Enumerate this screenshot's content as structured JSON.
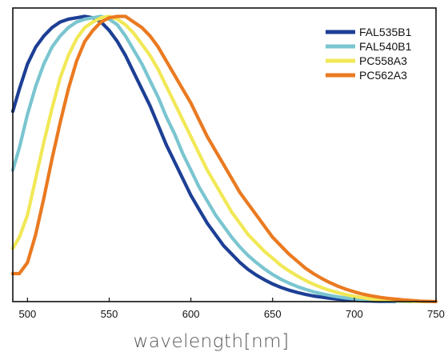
{
  "chart_data": {
    "type": "line",
    "title": "",
    "xlabel": "wavelength[nm]",
    "ylabel": "",
    "xlim": [
      491,
      750
    ],
    "ylim": [
      0,
      1.05
    ],
    "x_ticks": [
      500,
      550,
      600,
      650,
      700,
      750
    ],
    "y_ticks_shown": false,
    "grid": false,
    "legend_position": "top-right",
    "series": [
      {
        "name": "FAL535B1",
        "color": "#1d3f95",
        "x": [
          491,
          495,
          500,
          505,
          510,
          515,
          520,
          525,
          530,
          535,
          540,
          545,
          550,
          555,
          560,
          565,
          570,
          575,
          580,
          585,
          590,
          595,
          600,
          605,
          610,
          615,
          620,
          625,
          630,
          635,
          640,
          645,
          650,
          655,
          660,
          665,
          670,
          675,
          680,
          685,
          690,
          695,
          700,
          705,
          710,
          715,
          720,
          725
        ],
        "y": [
          0.68,
          0.76,
          0.85,
          0.91,
          0.95,
          0.98,
          1.0,
          1.01,
          1.015,
          1.02,
          1.015,
          1.0,
          0.97,
          0.93,
          0.88,
          0.82,
          0.76,
          0.7,
          0.63,
          0.56,
          0.5,
          0.44,
          0.38,
          0.33,
          0.28,
          0.24,
          0.2,
          0.17,
          0.14,
          0.115,
          0.095,
          0.078,
          0.063,
          0.051,
          0.041,
          0.033,
          0.026,
          0.02,
          0.016,
          0.012,
          0.009,
          0.007,
          0.005,
          0.003,
          0.002,
          0.001,
          0.0005,
          0.0
        ]
      },
      {
        "name": "FAL540B1",
        "color": "#7ac5d0",
        "x": [
          491,
          495,
          500,
          505,
          510,
          515,
          520,
          525,
          530,
          535,
          540,
          545,
          550,
          555,
          560,
          565,
          570,
          575,
          580,
          585,
          590,
          595,
          600,
          605,
          610,
          615,
          620,
          625,
          630,
          635,
          640,
          645,
          650,
          655,
          660,
          665,
          670,
          675,
          680,
          685,
          690,
          695,
          700,
          705,
          710,
          715,
          720,
          725,
          730,
          735
        ],
        "y": [
          0.47,
          0.55,
          0.67,
          0.77,
          0.85,
          0.91,
          0.95,
          0.98,
          1.0,
          1.01,
          1.015,
          1.02,
          1.01,
          0.99,
          0.95,
          0.9,
          0.85,
          0.79,
          0.73,
          0.66,
          0.6,
          0.53,
          0.47,
          0.41,
          0.36,
          0.31,
          0.27,
          0.23,
          0.195,
          0.165,
          0.14,
          0.117,
          0.097,
          0.08,
          0.066,
          0.054,
          0.044,
          0.035,
          0.028,
          0.022,
          0.017,
          0.013,
          0.01,
          0.007,
          0.005,
          0.0035,
          0.0025,
          0.0015,
          0.0007,
          0.0
        ]
      },
      {
        "name": "PC558A3",
        "color": "#f1e857",
        "x": [
          491,
          495,
          500,
          505,
          510,
          515,
          520,
          525,
          530,
          535,
          540,
          545,
          550,
          555,
          560,
          565,
          570,
          575,
          580,
          585,
          590,
          595,
          600,
          605,
          610,
          615,
          620,
          625,
          630,
          635,
          640,
          645,
          650,
          655,
          660,
          665,
          670,
          675,
          680,
          685,
          690,
          695,
          700,
          705,
          710,
          715,
          720,
          725,
          730,
          735,
          740,
          745
        ],
        "y": [
          0.19,
          0.23,
          0.31,
          0.44,
          0.57,
          0.69,
          0.8,
          0.88,
          0.94,
          0.98,
          1.0,
          1.015,
          1.02,
          1.01,
          0.99,
          0.96,
          0.92,
          0.88,
          0.83,
          0.77,
          0.71,
          0.65,
          0.59,
          0.53,
          0.47,
          0.42,
          0.37,
          0.32,
          0.28,
          0.24,
          0.21,
          0.18,
          0.155,
          0.13,
          0.11,
          0.092,
          0.076,
          0.062,
          0.05,
          0.04,
          0.032,
          0.025,
          0.019,
          0.014,
          0.01,
          0.007,
          0.005,
          0.003,
          0.002,
          0.001,
          0.0005,
          0.0
        ]
      },
      {
        "name": "PC562A3",
        "color": "#ea7a21",
        "x": [
          491,
          495,
          500,
          505,
          510,
          515,
          520,
          525,
          530,
          535,
          540,
          545,
          550,
          555,
          560,
          565,
          570,
          575,
          580,
          585,
          590,
          595,
          600,
          605,
          610,
          615,
          620,
          625,
          630,
          635,
          640,
          645,
          650,
          655,
          660,
          665,
          670,
          675,
          680,
          685,
          690,
          695,
          700,
          705,
          710,
          715,
          720,
          725,
          730,
          735,
          740,
          745,
          750
        ],
        "y": [
          0.1,
          0.1,
          0.14,
          0.24,
          0.37,
          0.51,
          0.64,
          0.76,
          0.86,
          0.93,
          0.97,
          1.0,
          1.015,
          1.02,
          1.02,
          1.0,
          0.98,
          0.95,
          0.91,
          0.86,
          0.81,
          0.76,
          0.71,
          0.65,
          0.59,
          0.54,
          0.49,
          0.44,
          0.39,
          0.35,
          0.31,
          0.27,
          0.23,
          0.2,
          0.17,
          0.145,
          0.12,
          0.1,
          0.083,
          0.068,
          0.055,
          0.044,
          0.035,
          0.027,
          0.021,
          0.016,
          0.012,
          0.009,
          0.006,
          0.004,
          0.002,
          0.001,
          0.0
        ]
      }
    ]
  }
}
